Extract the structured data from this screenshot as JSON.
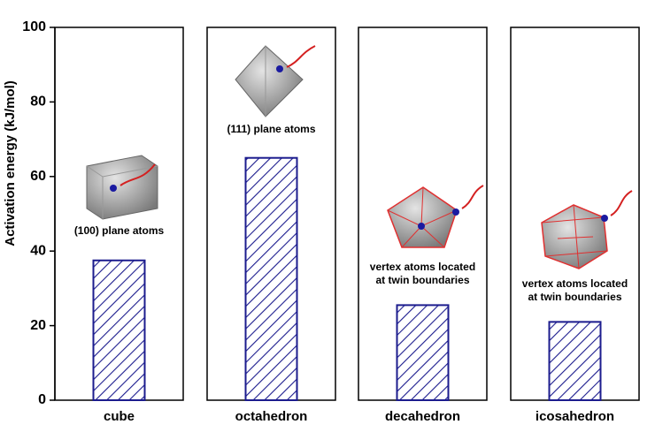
{
  "chart_data": {
    "type": "bar",
    "y_label": "Activation energy (kJ/mol)",
    "categories": [
      "cube",
      "octahedron",
      "decahedron",
      "icosahedron"
    ],
    "values": [
      37.5,
      65,
      25.5,
      21
    ],
    "color": "#1c1c8e",
    "ylim": [
      0,
      100
    ],
    "yticks": [
      0,
      20,
      40,
      60,
      80,
      100
    ],
    "annotations": [
      [
        "(100) plane atoms"
      ],
      [
        "(111) plane atoms"
      ],
      [
        "vertex atoms located",
        "at twin boundaries"
      ],
      [
        "vertex atoms located",
        "at twin boundaries"
      ]
    ]
  }
}
